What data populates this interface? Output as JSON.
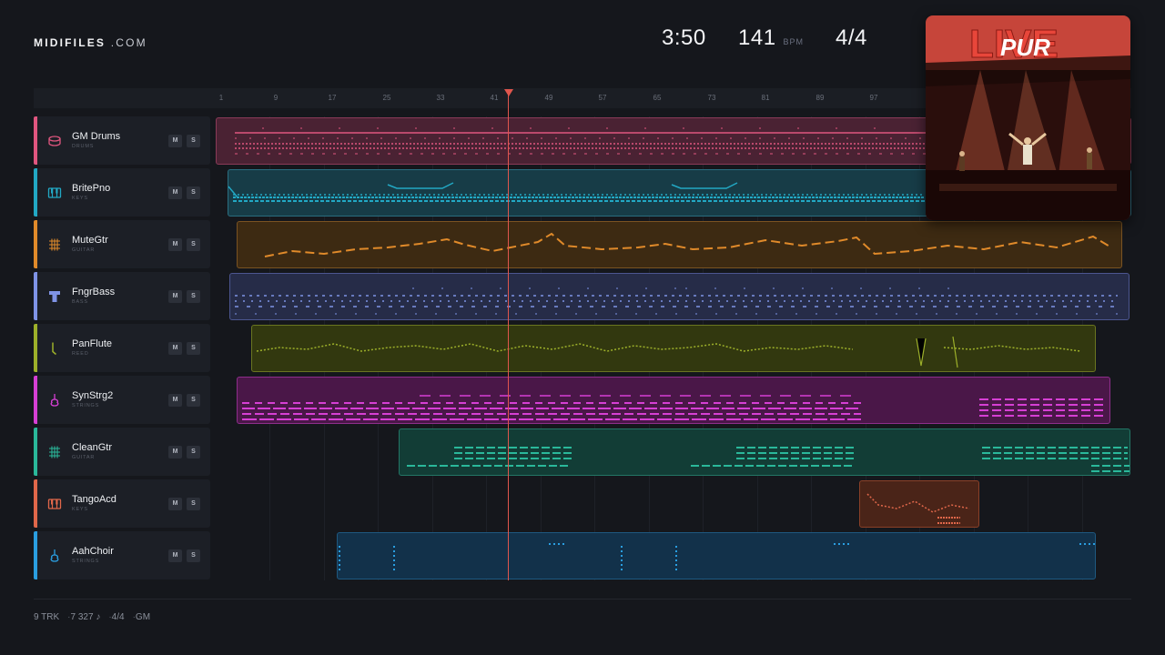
{
  "header": {
    "logo_brand": "MIDIFILES",
    "logo_domain": ".COM",
    "duration": "3:50",
    "tempo": "141",
    "tempo_unit": "BPM",
    "time_signature": "4/4"
  },
  "ruler": {
    "ticks": [
      "1",
      "9",
      "17",
      "25",
      "33",
      "41",
      "49",
      "57",
      "65",
      "73",
      "81",
      "89",
      "97"
    ]
  },
  "tracks": [
    {
      "name": "GM Drums",
      "category": "DRUMS",
      "color": "#e0567f",
      "icon": "drum-icon",
      "mute": "M",
      "solo": "S"
    },
    {
      "name": "BritePno",
      "category": "KEYS",
      "color": "#22a8c4",
      "icon": "piano-icon",
      "mute": "M",
      "solo": "S"
    },
    {
      "name": "MuteGtr",
      "category": "GUITAR",
      "color": "#e08a2a",
      "icon": "guitar-grid-icon",
      "mute": "M",
      "solo": "S"
    },
    {
      "name": "FngrBass",
      "category": "BASS",
      "color": "#7f93e6",
      "icon": "bass-icon",
      "mute": "M",
      "solo": "S"
    },
    {
      "name": "PanFlute",
      "category": "REED",
      "color": "#9db02a",
      "icon": "flute-icon",
      "mute": "M",
      "solo": "S"
    },
    {
      "name": "SynStrg2",
      "category": "STRINGS",
      "color": "#d63fd4",
      "icon": "violin-icon",
      "mute": "M",
      "solo": "S"
    },
    {
      "name": "CleanGtr",
      "category": "GUITAR",
      "color": "#2ab89a",
      "icon": "guitar-grid-icon",
      "mute": "M",
      "solo": "S"
    },
    {
      "name": "TangoAcd",
      "category": "KEYS",
      "color": "#e0674a",
      "icon": "piano-icon",
      "mute": "M",
      "solo": "S"
    },
    {
      "name": "AahChoir",
      "category": "STRINGS",
      "color": "#2a9ee0",
      "icon": "violin-icon",
      "mute": "M",
      "solo": "S"
    }
  ],
  "album_cover": {
    "title_text": "LIVE",
    "artist_text": "PUR"
  },
  "footer": {
    "tracks": "9 TRK",
    "notes": "7 327 ♪",
    "time_signature": "4/4",
    "standard": "GM",
    "separator": "·"
  }
}
